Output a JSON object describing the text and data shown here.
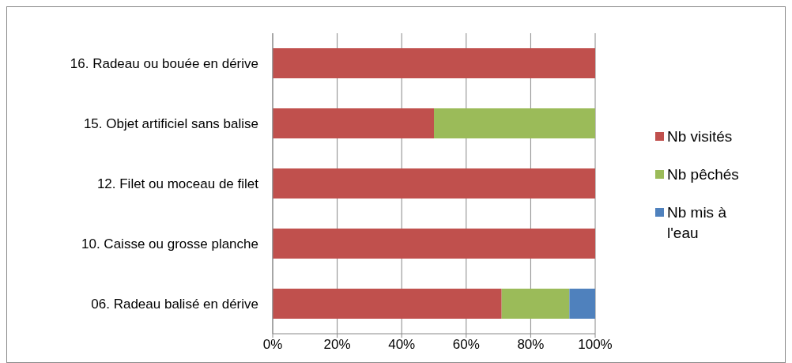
{
  "chart_data": {
    "type": "bar",
    "orientation": "horizontal",
    "stacked": true,
    "categories": [
      "16. Radeau ou bouée en dérive",
      "15. Objet artificiel sans balise",
      "12. Filet ou moceau de filet",
      "10. Caisse ou grosse planche",
      "06. Radeau balisé en dérive"
    ],
    "series": [
      {
        "name": "Nb visités",
        "color": "#c0504d",
        "values": [
          100,
          50,
          100,
          100,
          71
        ]
      },
      {
        "name": "Nb pêchés",
        "color": "#9bbb59",
        "values": [
          null,
          50,
          null,
          null,
          21
        ]
      },
      {
        "name": "Nb mis à l'eau",
        "color": "#4f81bd",
        "values": [
          null,
          null,
          null,
          null,
          8
        ]
      }
    ],
    "xlim": [
      0,
      100
    ],
    "xticks": [
      {
        "value": 0,
        "label": "0%"
      },
      {
        "value": 20,
        "label": "20%"
      },
      {
        "value": 40,
        "label": "40%"
      },
      {
        "value": 60,
        "label": "60%"
      },
      {
        "value": 80,
        "label": "80%"
      },
      {
        "value": 100,
        "label": "100%"
      }
    ],
    "grid": "x",
    "legend": "right"
  }
}
